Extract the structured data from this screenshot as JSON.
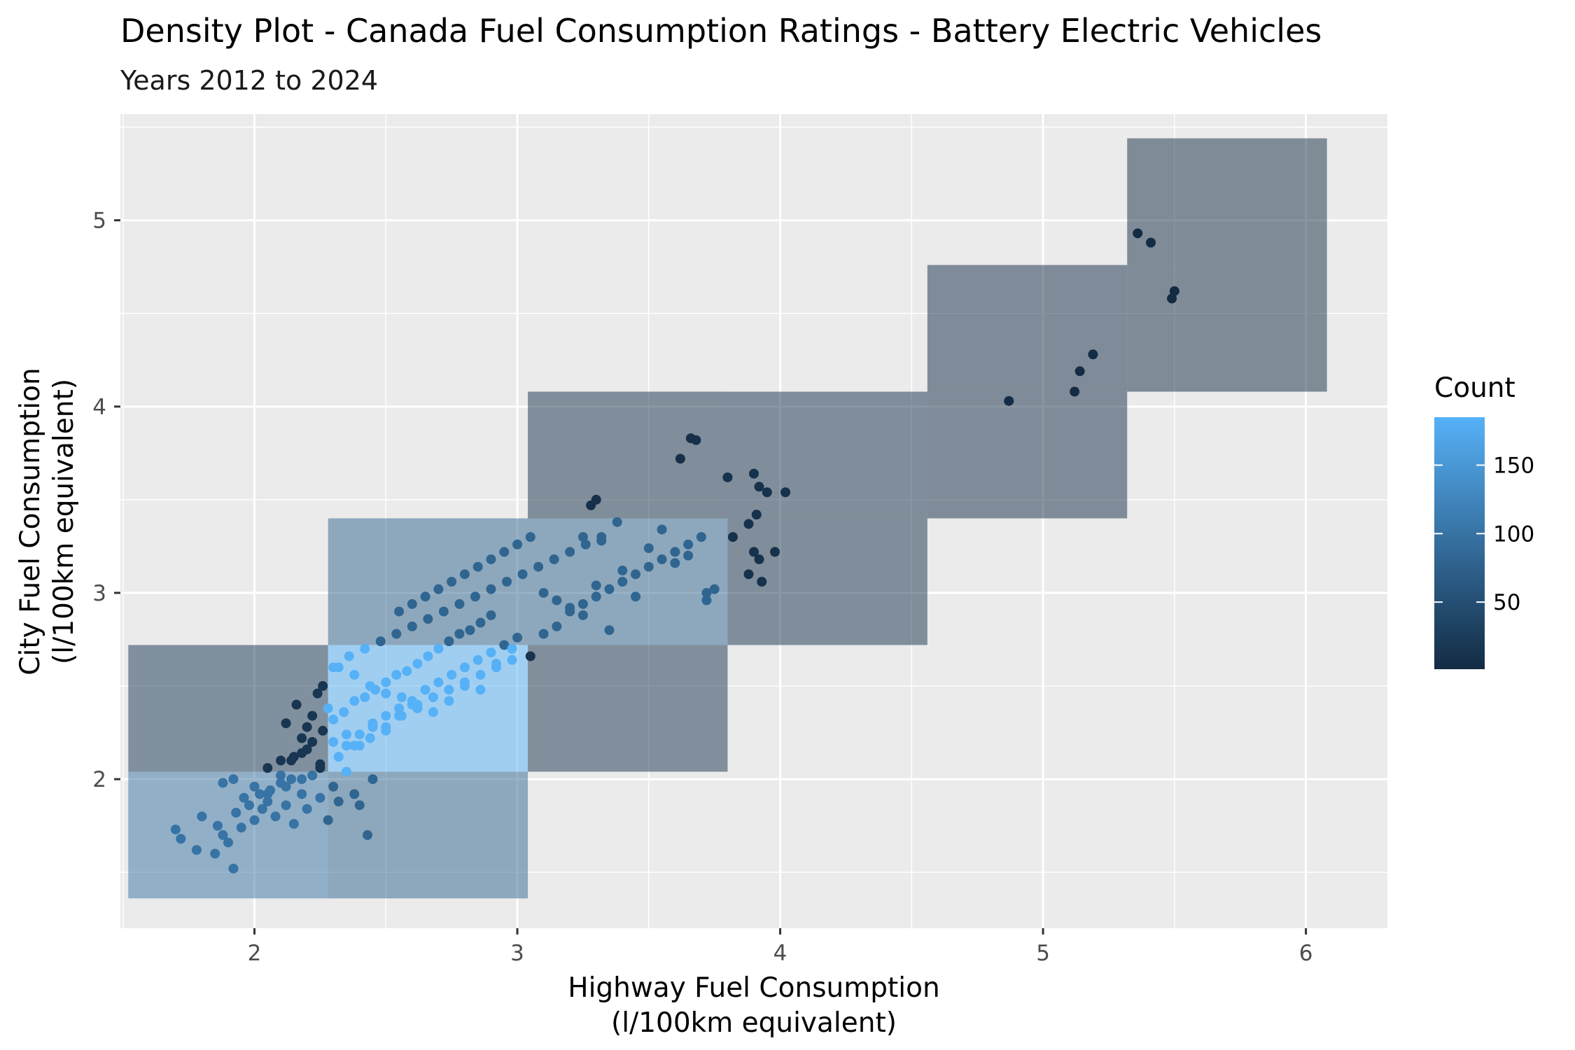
{
  "chart_data": {
    "type": "heatmap",
    "title": "Density Plot - Canada Fuel Consumption Ratings - Battery Electric Vehicles",
    "subtitle": "Years 2012 to 2024",
    "xlabel_lines": [
      "Highway Fuel Consumption",
      "(l/100km equivalent)"
    ],
    "ylabel_lines": [
      "City Fuel Consumption",
      "(l/100km equivalent)"
    ],
    "xlim": [
      1.49,
      6.31
    ],
    "ylim": [
      1.2,
      5.57
    ],
    "x_ticks": [
      2,
      3,
      4,
      5,
      6
    ],
    "y_ticks": [
      2,
      3,
      4,
      5
    ],
    "x_tick_labels": [
      "2",
      "3",
      "4",
      "5",
      "6"
    ],
    "y_tick_labels": [
      "2",
      "3",
      "4",
      "5"
    ],
    "legend": {
      "title": "Count",
      "position": "right",
      "range": [
        1,
        185
      ],
      "ticks": [
        50,
        100,
        150
      ],
      "tick_labels": [
        "50",
        "100",
        "150"
      ],
      "color_low": "#132B43",
      "color_high": "#56B1F7"
    },
    "cells": [
      {
        "x0": 1.52,
        "x1": 2.28,
        "y0": 1.36,
        "y1": 2.04,
        "count": 100
      },
      {
        "x0": 2.28,
        "x1": 3.04,
        "y0": 1.36,
        "y1": 2.04,
        "count": 80
      },
      {
        "x0": 1.52,
        "x1": 2.28,
        "y0": 2.04,
        "y1": 2.72,
        "count": 15
      },
      {
        "x0": 2.28,
        "x1": 3.04,
        "y0": 2.04,
        "y1": 2.72,
        "count": 185
      },
      {
        "x0": 3.04,
        "x1": 3.8,
        "y0": 2.04,
        "y1": 2.72,
        "count": 12
      },
      {
        "x0": 2.28,
        "x1": 3.04,
        "y0": 2.72,
        "y1": 3.4,
        "count": 80
      },
      {
        "x0": 3.04,
        "x1": 3.8,
        "y0": 2.72,
        "y1": 3.4,
        "count": 80
      },
      {
        "x0": 3.8,
        "x1": 4.56,
        "y0": 2.72,
        "y1": 3.4,
        "count": 10
      },
      {
        "x0": 3.04,
        "x1": 3.8,
        "y0": 3.4,
        "y1": 4.08,
        "count": 8
      },
      {
        "x0": 3.8,
        "x1": 4.56,
        "y0": 3.4,
        "y1": 4.08,
        "count": 10
      },
      {
        "x0": 4.56,
        "x1": 5.32,
        "y0": 3.4,
        "y1": 4.08,
        "count": 3
      },
      {
        "x0": 4.56,
        "x1": 5.32,
        "y0": 4.08,
        "y1": 4.76,
        "count": 3
      },
      {
        "x0": 5.32,
        "x1": 6.08,
        "y0": 4.08,
        "y1": 4.76,
        "count": 2
      },
      {
        "x0": 5.32,
        "x1": 6.08,
        "y0": 4.76,
        "y1": 5.44,
        "count": 2
      }
    ],
    "points_x": [
      1.7,
      1.72,
      1.78,
      1.8,
      1.85,
      1.86,
      1.88,
      1.9,
      1.92,
      1.93,
      1.95,
      1.96,
      1.98,
      2.0,
      2.02,
      2.03,
      2.05,
      2.06,
      2.08,
      2.1,
      2.12,
      2.14,
      2.15,
      2.18,
      2.2,
      2.22,
      2.25,
      2.28,
      2.3,
      2.32,
      2.35,
      2.38,
      2.4,
      2.43,
      2.45,
      1.88,
      1.92,
      2.0,
      2.05,
      2.1,
      2.15,
      2.2,
      2.25,
      2.3,
      2.35,
      2.4,
      2.45,
      2.5,
      2.55,
      2.6,
      2.12,
      2.16,
      2.18,
      2.2,
      2.22,
      2.24,
      2.26,
      2.28,
      2.1,
      2.14,
      2.18,
      2.22,
      2.26,
      2.3,
      2.34,
      2.38,
      2.42,
      2.46,
      2.5,
      2.54,
      2.58,
      2.62,
      2.66,
      2.7,
      2.74,
      2.78,
      2.82,
      2.86,
      2.9,
      2.35,
      2.4,
      2.45,
      2.5,
      2.55,
      2.6,
      2.65,
      2.7,
      2.75,
      2.8,
      2.85,
      2.9,
      2.95,
      3.0,
      2.32,
      2.38,
      2.44,
      2.5,
      2.56,
      2.62,
      2.68,
      2.74,
      2.8,
      2.86,
      2.92,
      2.98,
      3.05,
      3.1,
      3.15,
      3.2,
      3.25,
      3.3,
      3.35,
      3.4,
      3.45,
      3.5,
      3.55,
      3.6,
      3.65,
      3.7,
      2.55,
      2.6,
      2.65,
      2.7,
      2.75,
      2.8,
      2.85,
      2.9,
      2.95,
      3.0,
      3.05,
      3.1,
      3.15,
      3.2,
      3.25,
      3.3,
      3.35,
      3.4,
      3.5,
      3.55,
      3.6,
      3.65,
      3.72,
      3.28,
      3.3,
      3.38,
      3.25,
      3.32,
      3.45,
      3.62,
      3.66,
      3.68,
      3.8,
      3.82,
      3.9,
      3.92,
      3.95,
      3.98,
      3.88,
      3.91,
      3.93,
      3.92,
      3.88,
      3.9,
      3.72,
      3.75,
      4.02,
      2.05,
      2.12,
      2.18,
      2.25,
      2.32,
      2.38,
      2.44,
      2.5,
      2.56,
      2.62,
      2.68,
      2.74,
      2.8,
      2.86,
      2.92,
      2.98,
      4.87,
      5.12,
      5.14,
      5.19,
      5.36,
      5.41,
      5.49,
      5.5,
      2.3,
      2.36,
      2.42,
      2.48,
      2.54,
      2.6,
      2.66,
      2.72,
      2.78,
      2.84,
      2.9,
      2.96,
      3.02,
      3.08,
      3.14,
      3.2,
      3.26,
      3.32
    ],
    "points_y": [
      1.73,
      1.68,
      1.62,
      1.8,
      1.6,
      1.75,
      1.7,
      1.66,
      1.52,
      1.82,
      1.74,
      1.9,
      1.86,
      1.78,
      1.92,
      1.84,
      1.88,
      1.94,
      1.8,
      1.98,
      1.86,
      2.0,
      1.76,
      1.92,
      1.84,
      2.02,
      1.9,
      1.78,
      1.96,
      1.88,
      2.04,
      1.92,
      1.86,
      1.7,
      2.0,
      1.98,
      2.0,
      1.96,
      2.06,
      2.1,
      2.12,
      2.16,
      2.08,
      2.2,
      2.24,
      2.18,
      2.3,
      2.26,
      2.34,
      2.4,
      2.3,
      2.4,
      2.22,
      2.28,
      2.34,
      2.46,
      2.5,
      2.38,
      2.02,
      2.1,
      2.14,
      2.2,
      2.26,
      2.32,
      2.36,
      2.42,
      2.44,
      2.48,
      2.52,
      2.56,
      2.58,
      2.62,
      2.66,
      2.7,
      2.74,
      2.78,
      2.8,
      2.84,
      2.88,
      2.18,
      2.24,
      2.28,
      2.34,
      2.38,
      2.42,
      2.48,
      2.52,
      2.56,
      2.6,
      2.64,
      2.68,
      2.72,
      2.76,
      2.6,
      2.56,
      2.5,
      2.46,
      2.44,
      2.4,
      2.36,
      2.42,
      2.5,
      2.48,
      2.62,
      2.7,
      2.66,
      2.78,
      2.82,
      2.9,
      2.94,
      2.98,
      3.02,
      3.06,
      3.1,
      3.14,
      3.18,
      3.22,
      3.26,
      3.3,
      2.9,
      2.94,
      2.98,
      3.02,
      3.06,
      3.1,
      3.14,
      3.18,
      3.22,
      3.26,
      3.3,
      3.0,
      2.96,
      2.92,
      2.88,
      3.04,
      2.8,
      3.12,
      3.24,
      3.34,
      3.16,
      3.2,
      3.0,
      3.47,
      3.5,
      3.38,
      3.3,
      3.28,
      2.98,
      3.72,
      3.83,
      3.82,
      3.62,
      3.3,
      3.64,
      3.57,
      3.54,
      3.22,
      3.37,
      3.42,
      3.06,
      3.18,
      3.1,
      3.22,
      2.96,
      3.02,
      3.54,
      1.92,
      1.96,
      2.0,
      2.06,
      2.12,
      2.18,
      2.22,
      2.28,
      2.34,
      2.38,
      2.44,
      2.48,
      2.52,
      2.56,
      2.6,
      2.64,
      4.03,
      4.08,
      4.19,
      4.28,
      4.93,
      4.88,
      4.58,
      4.62,
      2.6,
      2.66,
      2.7,
      2.74,
      2.78,
      2.82,
      2.86,
      2.9,
      2.94,
      2.98,
      3.02,
      3.06,
      3.1,
      3.14,
      3.18,
      3.22,
      3.26,
      3.3
    ]
  }
}
